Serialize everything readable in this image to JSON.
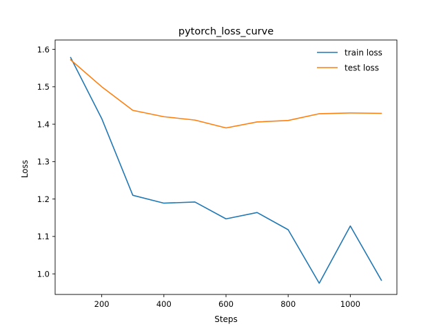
{
  "chart_data": {
    "type": "line",
    "title": "pytorch_loss_curve",
    "xlabel": "Steps",
    "ylabel": "Loss",
    "xlim": [
      50,
      1150
    ],
    "ylim": [
      0.945,
      1.625
    ],
    "xticks": [
      200,
      400,
      600,
      800,
      1000
    ],
    "yticks": [
      1.0,
      1.1,
      1.2,
      1.3,
      1.4,
      1.5,
      1.6
    ],
    "grid": false,
    "legend_position": "upper right",
    "x": [
      100,
      200,
      300,
      400,
      500,
      600,
      700,
      800,
      900,
      1000,
      1100
    ],
    "series": [
      {
        "name": "train loss",
        "color": "#1f77b4",
        "values": [
          1.578,
          1.415,
          1.21,
          1.189,
          1.192,
          1.147,
          1.164,
          1.118,
          0.975,
          1.128,
          0.983
        ]
      },
      {
        "name": "test loss",
        "color": "#ff7f0e",
        "values": [
          1.572,
          1.5,
          1.437,
          1.42,
          1.411,
          1.39,
          1.406,
          1.41,
          1.428,
          1.43,
          1.429
        ]
      }
    ]
  }
}
